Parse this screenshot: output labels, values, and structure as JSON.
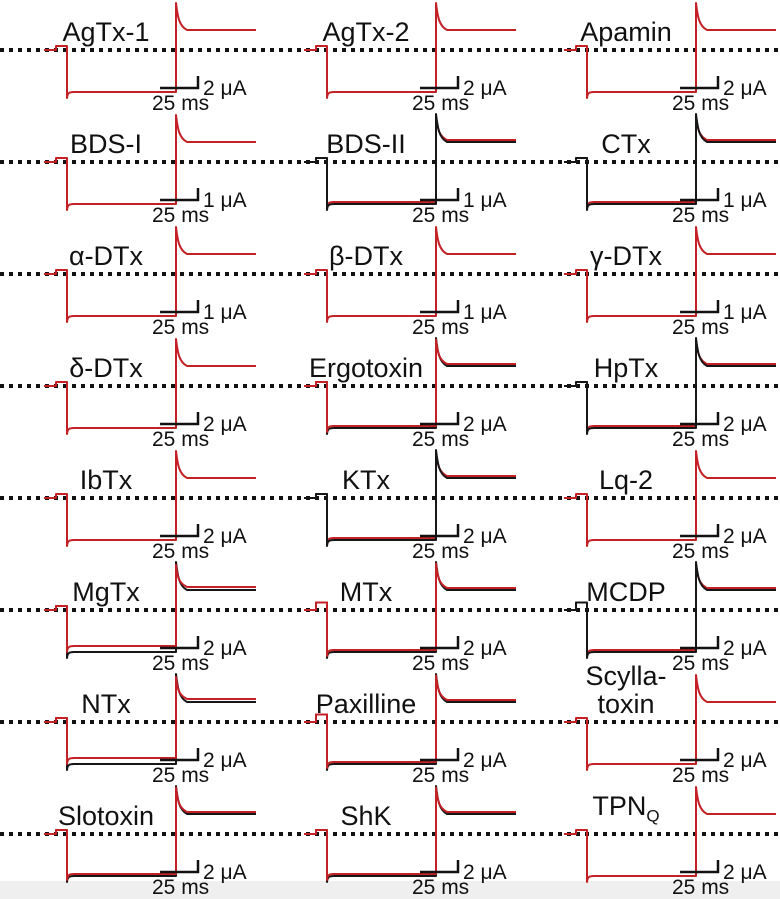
{
  "figure": {
    "background_color": "#ffffff",
    "bottom_strip_color": "#efefef",
    "colors": {
      "toxin_trace_red": "#c42127",
      "control_trace_black": "#161616",
      "dotted_zero_line": "#111111",
      "label_text": "#111111"
    }
  },
  "chart_data": {
    "type": "line",
    "description": "8x3 grid of two-electrode voltage-clamp current traces for 24 peptide toxins. Each panel shows superimposed control (black) and toxin (red) currents, a dotted zero-current reference line spanning each row, and current/time scale bars.",
    "x_units": "ms",
    "y_units": "μA",
    "grid": "off",
    "waveform_shape": {
      "segments": [
        "short baseline on the dotted zero-current line",
        "small square capacitive blip upward before the voltage step",
        "downward step to an inward-current plateau lasting ~100 ms",
        "large fast outward tail-current spike at the end of the pulse",
        "rapid decay to a sustained outward plateau above the zero line"
      ],
      "relative_levels": {
        "baseline": 0,
        "pulse_plateau": -1.0,
        "tail_peak": 1.15,
        "post_pulse_plateau": 0.45
      }
    },
    "panels": [
      {
        "name": "AgTx-1",
        "label": "AgTx-1",
        "row": 1,
        "col": 1,
        "scale_current": "2 μA",
        "scale_time": "25 ms",
        "trace_colors": [
          "red"
        ],
        "overlap": "red-only",
        "pre_step_artifact": false
      },
      {
        "name": "AgTx-2",
        "label": "AgTx-2",
        "row": 1,
        "col": 2,
        "scale_current": "2 μA",
        "scale_time": "25 ms",
        "trace_colors": [
          "red"
        ],
        "overlap": "red-only",
        "pre_step_artifact": false
      },
      {
        "name": "Apamin",
        "label": "Apamin",
        "row": 1,
        "col": 3,
        "scale_current": "2 μA",
        "scale_time": "25 ms",
        "trace_colors": [
          "red"
        ],
        "overlap": "red-only",
        "pre_step_artifact": false
      },
      {
        "name": "BDS-I",
        "label": "BDS-I",
        "row": 2,
        "col": 1,
        "scale_current": "1 μA",
        "scale_time": "25 ms",
        "trace_colors": [
          "red"
        ],
        "overlap": "red-only",
        "pre_step_artifact": false
      },
      {
        "name": "BDS-II",
        "label": "BDS-II",
        "row": 2,
        "col": 2,
        "scale_current": "1 μA",
        "scale_time": "25 ms",
        "trace_colors": [
          "black",
          "red"
        ],
        "overlap": "black-over-red",
        "pre_step_artifact": false
      },
      {
        "name": "CTx",
        "label": "CTx",
        "row": 2,
        "col": 3,
        "scale_current": "1 μA",
        "scale_time": "25 ms",
        "trace_colors": [
          "black",
          "red"
        ],
        "overlap": "black-over-red",
        "pre_step_artifact": false
      },
      {
        "name": "alpha-DTx",
        "label": "α-DTx",
        "row": 3,
        "col": 1,
        "scale_current": "1 μA",
        "scale_time": "25 ms",
        "trace_colors": [
          "red"
        ],
        "overlap": "red-only",
        "pre_step_artifact": false
      },
      {
        "name": "beta-DTx",
        "label": "β-DTx",
        "row": 3,
        "col": 2,
        "scale_current": "1 μA",
        "scale_time": "25 ms",
        "trace_colors": [
          "red"
        ],
        "overlap": "red-only",
        "pre_step_artifact": false
      },
      {
        "name": "gamma-DTx",
        "label": "γ-DTx",
        "row": 3,
        "col": 3,
        "scale_current": "1 μA",
        "scale_time": "25 ms",
        "trace_colors": [
          "red"
        ],
        "overlap": "red-only",
        "pre_step_artifact": false
      },
      {
        "name": "delta-DTx",
        "label": "δ-DTx",
        "row": 4,
        "col": 1,
        "scale_current": "2 μA",
        "scale_time": "25 ms",
        "trace_colors": [
          "red"
        ],
        "overlap": "red-only",
        "pre_step_artifact": false
      },
      {
        "name": "Ergotoxin",
        "label": "Ergotoxin",
        "row": 4,
        "col": 2,
        "scale_current": "2 μA",
        "scale_time": "25 ms",
        "trace_colors": [
          "black",
          "red"
        ],
        "overlap": "red-over-black",
        "pre_step_artifact": false
      },
      {
        "name": "HpTx",
        "label": "HpTx",
        "row": 4,
        "col": 3,
        "scale_current": "2 μA",
        "scale_time": "25 ms",
        "trace_colors": [
          "black",
          "red"
        ],
        "overlap": "black-over-red",
        "pre_step_artifact": false
      },
      {
        "name": "IbTx",
        "label": "IbTx",
        "row": 5,
        "col": 1,
        "scale_current": "2 μA",
        "scale_time": "25 ms",
        "trace_colors": [
          "red"
        ],
        "overlap": "red-only",
        "pre_step_artifact": false
      },
      {
        "name": "KTx",
        "label": "KTx",
        "row": 5,
        "col": 2,
        "scale_current": "2 μA",
        "scale_time": "25 ms",
        "trace_colors": [
          "black",
          "red"
        ],
        "overlap": "black-over-red",
        "pre_step_artifact": false
      },
      {
        "name": "Lq-2",
        "label": "Lq-2",
        "row": 5,
        "col": 3,
        "scale_current": "2 μA",
        "scale_time": "25 ms",
        "trace_colors": [
          "red"
        ],
        "overlap": "red-only",
        "pre_step_artifact": false
      },
      {
        "name": "MgTx",
        "label": "MgTx",
        "row": 6,
        "col": 1,
        "scale_current": "2 μA",
        "scale_time": "25 ms",
        "trace_colors": [
          "black",
          "red"
        ],
        "overlap": "black-red-separated",
        "pre_step_artifact": false
      },
      {
        "name": "MTx",
        "label": "MTx",
        "row": 6,
        "col": 2,
        "scale_current": "2 μA",
        "scale_time": "25 ms",
        "trace_colors": [
          "black",
          "red"
        ],
        "overlap": "red-over-black",
        "pre_step_artifact": true
      },
      {
        "name": "MCDP",
        "label": "MCDP",
        "row": 6,
        "col": 3,
        "scale_current": "2 μA",
        "scale_time": "25 ms",
        "trace_colors": [
          "black",
          "red"
        ],
        "overlap": "black-over-red",
        "pre_step_artifact": true
      },
      {
        "name": "NTx",
        "label": "NTx",
        "row": 7,
        "col": 1,
        "scale_current": "2 μA",
        "scale_time": "25 ms",
        "trace_colors": [
          "black",
          "red"
        ],
        "overlap": "black-red-separated",
        "pre_step_artifact": false
      },
      {
        "name": "Paxilline",
        "label": "Paxilline",
        "row": 7,
        "col": 2,
        "scale_current": "2 μA",
        "scale_time": "25 ms",
        "trace_colors": [
          "black",
          "red"
        ],
        "overlap": "red-over-black",
        "pre_step_artifact": true
      },
      {
        "name": "Scylla-toxin",
        "label": "Scylla-",
        "label_line2": "toxin",
        "row": 7,
        "col": 3,
        "scale_current": "2 μA",
        "scale_time": "25 ms",
        "trace_colors": [
          "red"
        ],
        "overlap": "red-only",
        "pre_step_artifact": false
      },
      {
        "name": "Slotoxin",
        "label": "Slotoxin",
        "row": 8,
        "col": 1,
        "scale_current": "2 μA",
        "scale_time": "25 ms",
        "trace_colors": [
          "black",
          "red"
        ],
        "overlap": "red-over-black",
        "pre_step_artifact": false
      },
      {
        "name": "ShK",
        "label": "ShK",
        "row": 8,
        "col": 2,
        "scale_current": "2 μA",
        "scale_time": "25 ms",
        "trace_colors": [
          "black",
          "red"
        ],
        "overlap": "red-over-black",
        "pre_step_artifact": false
      },
      {
        "name": "TPN-Q",
        "label": "TPN",
        "label_sub": "Q",
        "row": 8,
        "col": 3,
        "scale_current": "2 μA",
        "scale_time": "25 ms",
        "trace_colors": [
          "red"
        ],
        "overlap": "red-only",
        "pre_step_artifact": false
      }
    ]
  }
}
